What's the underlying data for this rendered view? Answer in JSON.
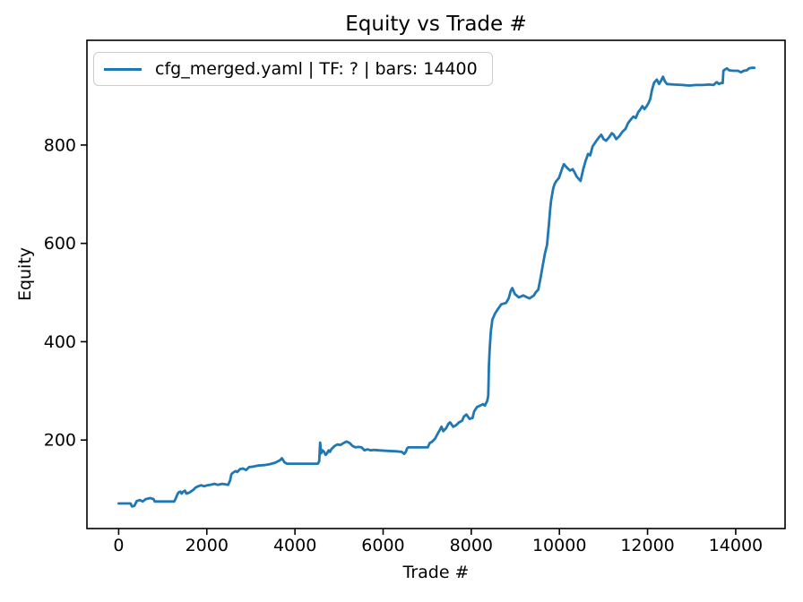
{
  "chart_data": {
    "type": "line",
    "title": "Equity vs Trade #",
    "xlabel": "Trade #",
    "ylabel": "Equity",
    "grid": false,
    "legend_position": "upper left",
    "legend_edge_color": "#cccccc",
    "line_color": "#1f77b4",
    "xlim": [
      -720,
      15120
    ],
    "ylim": [
      20,
      1013
    ],
    "xticks": [
      0,
      2000,
      4000,
      6000,
      8000,
      10000,
      12000,
      14000
    ],
    "yticks": [
      200,
      400,
      600,
      800
    ],
    "series": [
      {
        "name": "cfg_merged.yaml | TF: ? | bars: 14400",
        "points": [
          [
            0,
            71
          ],
          [
            160,
            71
          ],
          [
            270,
            71
          ],
          [
            300,
            65
          ],
          [
            355,
            66
          ],
          [
            410,
            76
          ],
          [
            480,
            78
          ],
          [
            545,
            75
          ],
          [
            615,
            80
          ],
          [
            715,
            82
          ],
          [
            790,
            80
          ],
          [
            820,
            75
          ],
          [
            1100,
            75
          ],
          [
            1260,
            75
          ],
          [
            1300,
            82
          ],
          [
            1330,
            89
          ],
          [
            1365,
            94
          ],
          [
            1400,
            95
          ],
          [
            1430,
            91
          ],
          [
            1465,
            95
          ],
          [
            1505,
            97
          ],
          [
            1535,
            91
          ],
          [
            1600,
            93
          ],
          [
            1635,
            95
          ],
          [
            1700,
            99
          ],
          [
            1740,
            103
          ],
          [
            1805,
            106
          ],
          [
            1870,
            108
          ],
          [
            1940,
            106
          ],
          [
            2010,
            108
          ],
          [
            2075,
            109
          ],
          [
            2175,
            111
          ],
          [
            2245,
            109
          ],
          [
            2350,
            111
          ],
          [
            2420,
            110
          ],
          [
            2485,
            109
          ],
          [
            2530,
            118
          ],
          [
            2555,
            130
          ],
          [
            2585,
            133
          ],
          [
            2655,
            137
          ],
          [
            2690,
            135
          ],
          [
            2755,
            141
          ],
          [
            2825,
            142
          ],
          [
            2890,
            139
          ],
          [
            2960,
            145
          ],
          [
            3060,
            146
          ],
          [
            3160,
            148
          ],
          [
            3300,
            149
          ],
          [
            3435,
            151
          ],
          [
            3550,
            154
          ],
          [
            3660,
            159
          ],
          [
            3705,
            163
          ],
          [
            3760,
            155
          ],
          [
            3815,
            152
          ],
          [
            4100,
            152
          ],
          [
            4400,
            152
          ],
          [
            4520,
            152
          ],
          [
            4550,
            157
          ],
          [
            4570,
            195
          ],
          [
            4595,
            173
          ],
          [
            4625,
            179
          ],
          [
            4660,
            176
          ],
          [
            4695,
            170
          ],
          [
            4730,
            173
          ],
          [
            4765,
            179
          ],
          [
            4795,
            176
          ],
          [
            4830,
            182
          ],
          [
            4900,
            188
          ],
          [
            4965,
            191
          ],
          [
            5035,
            190
          ],
          [
            5105,
            194
          ],
          [
            5170,
            197
          ],
          [
            5240,
            194
          ],
          [
            5305,
            188
          ],
          [
            5375,
            185
          ],
          [
            5440,
            186
          ],
          [
            5510,
            185
          ],
          [
            5580,
            179
          ],
          [
            5645,
            181
          ],
          [
            5715,
            179
          ],
          [
            5785,
            180
          ],
          [
            5900,
            179
          ],
          [
            6100,
            178
          ],
          [
            6300,
            177
          ],
          [
            6420,
            176
          ],
          [
            6480,
            172
          ],
          [
            6515,
            176
          ],
          [
            6545,
            183
          ],
          [
            6570,
            185
          ],
          [
            6800,
            185
          ],
          [
            7010,
            185
          ],
          [
            7060,
            194
          ],
          [
            7115,
            197
          ],
          [
            7180,
            203
          ],
          [
            7250,
            215
          ],
          [
            7290,
            221
          ],
          [
            7325,
            227
          ],
          [
            7365,
            218
          ],
          [
            7430,
            224
          ],
          [
            7480,
            233
          ],
          [
            7520,
            236
          ],
          [
            7590,
            227
          ],
          [
            7655,
            230
          ],
          [
            7720,
            236
          ],
          [
            7790,
            239
          ],
          [
            7835,
            248
          ],
          [
            7890,
            252
          ],
          [
            7960,
            243
          ],
          [
            8030,
            245
          ],
          [
            8065,
            258
          ],
          [
            8130,
            267
          ],
          [
            8200,
            270
          ],
          [
            8265,
            273
          ],
          [
            8310,
            270
          ],
          [
            8340,
            276
          ],
          [
            8362,
            279
          ],
          [
            8375,
            285
          ],
          [
            8385,
            291
          ],
          [
            8392,
            312
          ],
          [
            8400,
            349
          ],
          [
            8418,
            385
          ],
          [
            8445,
            421
          ],
          [
            8478,
            445
          ],
          [
            8545,
            458
          ],
          [
            8610,
            467
          ],
          [
            8680,
            476
          ],
          [
            8790,
            479
          ],
          [
            8850,
            488
          ],
          [
            8893,
            503
          ],
          [
            8930,
            509
          ],
          [
            8990,
            497
          ],
          [
            9080,
            490
          ],
          [
            9180,
            494
          ],
          [
            9250,
            491
          ],
          [
            9320,
            488
          ],
          [
            9420,
            494
          ],
          [
            9460,
            500
          ],
          [
            9520,
            506
          ],
          [
            9572,
            530
          ],
          [
            9622,
            555
          ],
          [
            9670,
            579
          ],
          [
            9720,
            597
          ],
          [
            9768,
            645
          ],
          [
            9790,
            670
          ],
          [
            9812,
            688
          ],
          [
            9860,
            712
          ],
          [
            9892,
            721
          ],
          [
            9930,
            727
          ],
          [
            9990,
            733
          ],
          [
            10070,
            754
          ],
          [
            10102,
            761
          ],
          [
            10170,
            754
          ],
          [
            10240,
            748
          ],
          [
            10300,
            751
          ],
          [
            10342,
            745
          ],
          [
            10390,
            736
          ],
          [
            10480,
            727
          ],
          [
            10540,
            751
          ],
          [
            10592,
            767
          ],
          [
            10650,
            782
          ],
          [
            10700,
            779
          ],
          [
            10752,
            797
          ],
          [
            10820,
            806
          ],
          [
            10890,
            815
          ],
          [
            10950,
            821
          ],
          [
            11002,
            812
          ],
          [
            11060,
            809
          ],
          [
            11120,
            815
          ],
          [
            11190,
            824
          ],
          [
            11232,
            821
          ],
          [
            11290,
            812
          ],
          [
            11360,
            818
          ],
          [
            11430,
            827
          ],
          [
            11500,
            833
          ],
          [
            11560,
            845
          ],
          [
            11620,
            852
          ],
          [
            11680,
            858
          ],
          [
            11732,
            855
          ],
          [
            11790,
            867
          ],
          [
            11840,
            873
          ],
          [
            11882,
            879
          ],
          [
            11930,
            873
          ],
          [
            11980,
            879
          ],
          [
            12020,
            885
          ],
          [
            12062,
            894
          ],
          [
            12100,
            912
          ],
          [
            12150,
            927
          ],
          [
            12210,
            933
          ],
          [
            12262,
            924
          ],
          [
            12300,
            930
          ],
          [
            12350,
            939
          ],
          [
            12392,
            930
          ],
          [
            12440,
            924
          ],
          [
            12600,
            923
          ],
          [
            12800,
            922
          ],
          [
            12950,
            921
          ],
          [
            13100,
            922
          ],
          [
            13250,
            922
          ],
          [
            13400,
            923
          ],
          [
            13500,
            922
          ],
          [
            13542,
            926
          ],
          [
            13572,
            928
          ],
          [
            13620,
            924
          ],
          [
            13665,
            926
          ],
          [
            13705,
            926
          ],
          [
            13722,
            951
          ],
          [
            13762,
            954
          ],
          [
            13800,
            956
          ],
          [
            13852,
            952
          ],
          [
            13950,
            951
          ],
          [
            14050,
            951
          ],
          [
            14122,
            948
          ],
          [
            14180,
            951
          ],
          [
            14250,
            952
          ],
          [
            14302,
            956
          ],
          [
            14360,
            957
          ],
          [
            14420,
            957
          ]
        ]
      }
    ]
  }
}
